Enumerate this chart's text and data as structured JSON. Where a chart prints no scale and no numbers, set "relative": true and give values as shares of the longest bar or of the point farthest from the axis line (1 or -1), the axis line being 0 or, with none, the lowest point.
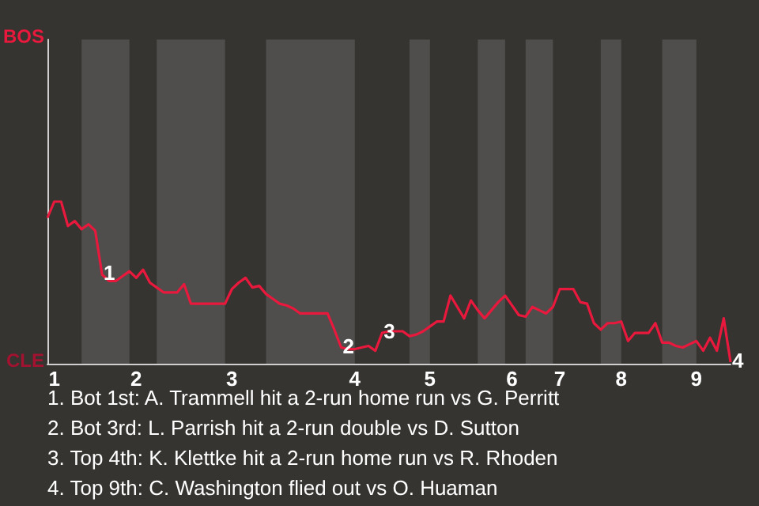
{
  "chart_data": {
    "type": "line",
    "relative": true,
    "categories": [
      null,
      "1",
      null,
      null,
      null,
      null,
      null,
      null,
      null,
      null,
      null,
      null,
      null,
      "2",
      null,
      null,
      null,
      null,
      null,
      null,
      null,
      null,
      null,
      null,
      null,
      null,
      null,
      "3",
      null,
      null,
      null,
      null,
      null,
      null,
      null,
      null,
      null,
      null,
      null,
      null,
      null,
      null,
      null,
      null,
      null,
      "4",
      null,
      null,
      null,
      null,
      null,
      null,
      null,
      null,
      null,
      null,
      "5",
      null,
      null,
      null,
      null,
      null,
      null,
      null,
      null,
      null,
      null,
      null,
      "6",
      null,
      null,
      null,
      null,
      null,
      null,
      "7",
      null,
      null,
      null,
      null,
      null,
      null,
      null,
      null,
      "8",
      null,
      null,
      null,
      null,
      null,
      null,
      null,
      null,
      null,
      null,
      "9",
      null,
      null,
      null,
      null,
      null
    ],
    "series": [
      {
        "color": "#e8193c",
        "values": [
          0.9,
          1,
          1,
          0.85,
          0.88,
          0.83,
          0.86,
          0.82,
          0.55,
          0.51,
          0.51,
          0.54,
          0.57,
          0.53,
          0.58,
          0.5,
          0.47,
          0.44,
          0.44,
          0.44,
          0.49,
          0.37,
          0.37,
          0.37,
          0.37,
          0.37,
          0.37,
          0.46,
          0.5,
          0.53,
          0.47,
          0.48,
          0.43,
          0.4,
          0.37,
          0.36,
          0.34,
          0.31,
          0.31,
          0.31,
          0.31,
          0.31,
          0.21,
          0.1,
          0.09,
          0.09,
          0.1,
          0.11,
          0.08,
          0.19,
          0.2,
          0.2,
          0.2,
          0.17,
          0.18,
          0.2,
          0.23,
          0.26,
          0.26,
          0.42,
          0.35,
          0.28,
          0.39,
          0.33,
          0.28,
          0.33,
          0.38,
          0.42,
          0.36,
          0.3,
          0.29,
          0.35,
          0.33,
          0.31,
          0.35,
          0.46,
          0.46,
          0.46,
          0.38,
          0.37,
          0.25,
          0.21,
          0.25,
          0.25,
          0.26,
          0.14,
          0.19,
          0.19,
          0.19,
          0.25,
          0.13,
          0.13,
          0.11,
          0.1,
          0.12,
          0.14,
          0.08,
          0.16,
          0.08,
          0.28,
          0.01
        ]
      }
    ],
    "marker": "none",
    "annotations": [
      "BOS",
      "CLE",
      {
        "text": "1",
        "y": 0.55
      },
      {
        "text": "2",
        "y": 0.1
      },
      {
        "text": "3",
        "y": 0.19
      },
      {
        "text": "4",
        "y": 0.01
      },
      "1. Bot 1st: A. Trammell hit a 2-run home run vs G. Perritt",
      "2. Bot 3rd: L. Parrish hit a 2-run double vs D. Sutton",
      "3. Top 4th: K. Klettke hit a 2-run home run vs R. Rhoden",
      "4. Top 9th: C. Washington flied out vs O. Huaman"
    ]
  }
}
